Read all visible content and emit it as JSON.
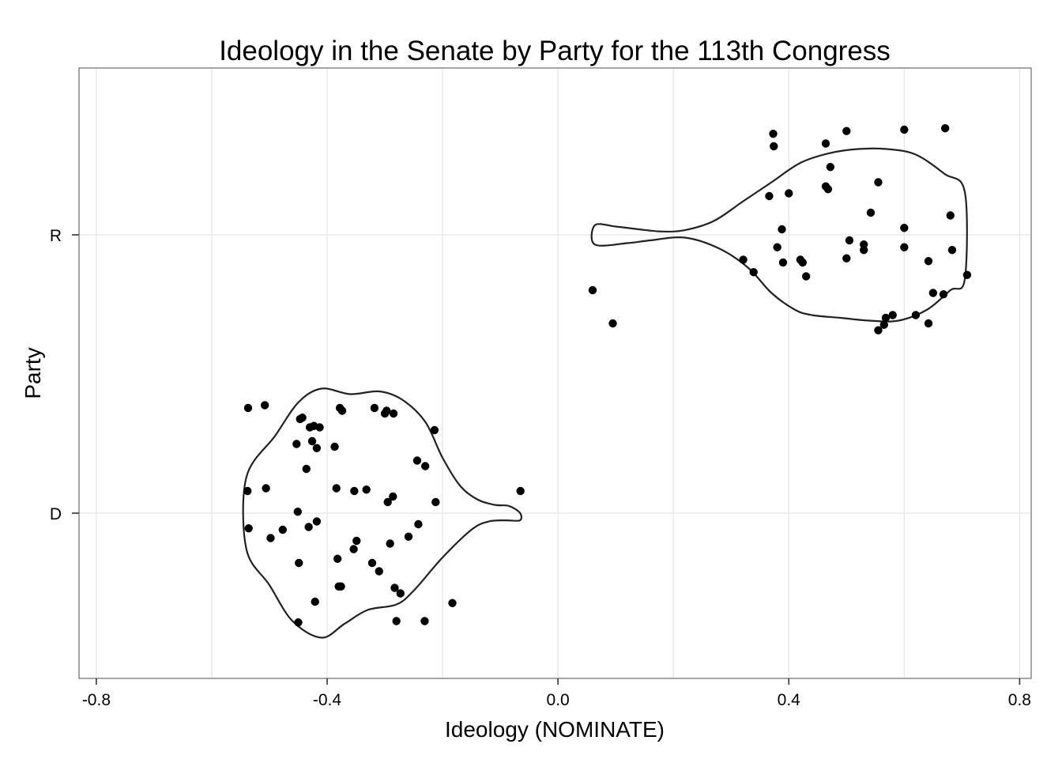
{
  "chart_data": {
    "type": "violin",
    "title": "Ideology in the Senate by Party for the 113th Congress",
    "xlabel": "Ideology (NOMINATE)",
    "ylabel": "Party",
    "xlim": [
      -0.83,
      0.82
    ],
    "categories": [
      "D",
      "R"
    ],
    "x_ticks": [
      -0.8,
      -0.4,
      0.0,
      0.4,
      0.8
    ],
    "x_tick_labels": [
      "-0.8",
      "-0.4",
      "0.0",
      "0.4",
      "0.8"
    ],
    "grid": true,
    "series": [
      {
        "category": "D",
        "violin_profile": [
          [
            -0.066,
            0.001
          ],
          [
            -0.085,
            0.026
          ],
          [
            -0.11,
            0.03
          ],
          [
            -0.14,
            0.05
          ],
          [
            -0.17,
            0.1
          ],
          [
            -0.2,
            0.2
          ],
          [
            -0.23,
            0.33
          ],
          [
            -0.27,
            0.41
          ],
          [
            -0.31,
            0.44
          ],
          [
            -0.36,
            0.43
          ],
          [
            -0.41,
            0.45
          ],
          [
            -0.45,
            0.4
          ],
          [
            -0.49,
            0.28
          ],
          [
            -0.54,
            0.13
          ],
          [
            -0.54,
            -0.13
          ],
          [
            -0.5,
            -0.26
          ],
          [
            -0.46,
            -0.39
          ],
          [
            -0.41,
            -0.45
          ],
          [
            -0.37,
            -0.4
          ],
          [
            -0.33,
            -0.35
          ],
          [
            -0.28,
            -0.33
          ],
          [
            -0.25,
            -0.28
          ],
          [
            -0.2,
            -0.16
          ],
          [
            -0.15,
            -0.06
          ],
          [
            -0.12,
            -0.03
          ],
          [
            -0.09,
            -0.026
          ],
          [
            -0.066,
            -0.026
          ]
        ],
        "points": [
          [
            -0.537,
            0.38
          ],
          [
            -0.508,
            0.39
          ],
          [
            -0.447,
            0.34
          ],
          [
            -0.443,
            0.345
          ],
          [
            -0.43,
            0.31
          ],
          [
            -0.423,
            0.315
          ],
          [
            -0.413,
            0.31
          ],
          [
            -0.378,
            0.38
          ],
          [
            -0.374,
            0.37
          ],
          [
            -0.318,
            0.38
          ],
          [
            -0.3,
            0.36
          ],
          [
            -0.297,
            0.37
          ],
          [
            -0.285,
            0.36
          ],
          [
            -0.214,
            0.3
          ],
          [
            -0.453,
            0.25
          ],
          [
            -0.426,
            0.26
          ],
          [
            -0.418,
            0.235
          ],
          [
            -0.387,
            0.24
          ],
          [
            -0.244,
            0.19
          ],
          [
            -0.23,
            0.17
          ],
          [
            -0.436,
            0.16
          ],
          [
            -0.538,
            0.08
          ],
          [
            -0.506,
            0.09
          ],
          [
            -0.384,
            0.09
          ],
          [
            -0.353,
            0.08
          ],
          [
            -0.332,
            0.085
          ],
          [
            -0.286,
            0.06
          ],
          [
            -0.295,
            0.04
          ],
          [
            -0.212,
            0.04
          ],
          [
            -0.065,
            0.08
          ],
          [
            -0.451,
            0.005
          ],
          [
            -0.536,
            -0.055
          ],
          [
            -0.477,
            -0.06
          ],
          [
            -0.432,
            -0.05
          ],
          [
            -0.418,
            -0.03
          ],
          [
            -0.242,
            -0.04
          ],
          [
            -0.498,
            -0.09
          ],
          [
            -0.349,
            -0.1
          ],
          [
            -0.291,
            -0.11
          ],
          [
            -0.259,
            -0.085
          ],
          [
            -0.354,
            -0.13
          ],
          [
            -0.382,
            -0.165
          ],
          [
            -0.449,
            -0.18
          ],
          [
            -0.322,
            -0.18
          ],
          [
            -0.31,
            -0.21
          ],
          [
            -0.38,
            -0.265
          ],
          [
            -0.376,
            -0.265
          ],
          [
            -0.283,
            -0.27
          ],
          [
            -0.273,
            -0.29
          ],
          [
            -0.421,
            -0.32
          ],
          [
            -0.183,
            -0.325
          ],
          [
            -0.45,
            -0.395
          ],
          [
            -0.28,
            -0.39
          ],
          [
            -0.231,
            -0.39
          ]
        ]
      },
      {
        "category": "R",
        "violin_profile": [
          [
            0.064,
            0.035
          ],
          [
            0.1,
            0.03
          ],
          [
            0.14,
            0.02
          ],
          [
            0.18,
            0.012
          ],
          [
            0.22,
            0.017
          ],
          [
            0.27,
            0.05
          ],
          [
            0.32,
            0.12
          ],
          [
            0.37,
            0.19
          ],
          [
            0.42,
            0.26
          ],
          [
            0.47,
            0.295
          ],
          [
            0.52,
            0.31
          ],
          [
            0.57,
            0.31
          ],
          [
            0.62,
            0.29
          ],
          [
            0.67,
            0.22
          ],
          [
            0.705,
            0.155
          ],
          [
            0.705,
            -0.16
          ],
          [
            0.68,
            -0.2
          ],
          [
            0.64,
            -0.27
          ],
          [
            0.59,
            -0.31
          ],
          [
            0.54,
            -0.31
          ],
          [
            0.49,
            -0.3
          ],
          [
            0.44,
            -0.29
          ],
          [
            0.41,
            -0.27
          ],
          [
            0.37,
            -0.21
          ],
          [
            0.33,
            -0.12
          ],
          [
            0.28,
            -0.05
          ],
          [
            0.22,
            -0.01
          ],
          [
            0.16,
            -0.02
          ],
          [
            0.12,
            -0.03
          ],
          [
            0.064,
            -0.035
          ]
        ],
        "points": [
          [
            0.373,
            0.365
          ],
          [
            0.5,
            0.375
          ],
          [
            0.6,
            0.38
          ],
          [
            0.671,
            0.385
          ],
          [
            0.374,
            0.32
          ],
          [
            0.464,
            0.33
          ],
          [
            0.472,
            0.245
          ],
          [
            0.555,
            0.19
          ],
          [
            0.464,
            0.175
          ],
          [
            0.468,
            0.165
          ],
          [
            0.366,
            0.14
          ],
          [
            0.4,
            0.15
          ],
          [
            0.542,
            0.08
          ],
          [
            0.68,
            0.07
          ],
          [
            0.388,
            0.02
          ],
          [
            0.6,
            0.025
          ],
          [
            0.505,
            -0.02
          ],
          [
            0.53,
            -0.035
          ],
          [
            0.38,
            -0.045
          ],
          [
            0.6,
            -0.045
          ],
          [
            0.53,
            -0.055
          ],
          [
            0.683,
            -0.055
          ],
          [
            0.5,
            -0.085
          ],
          [
            0.321,
            -0.09
          ],
          [
            0.42,
            -0.09
          ],
          [
            0.39,
            -0.1
          ],
          [
            0.424,
            -0.1
          ],
          [
            0.642,
            -0.095
          ],
          [
            0.339,
            -0.135
          ],
          [
            0.43,
            -0.15
          ],
          [
            0.709,
            -0.145
          ],
          [
            0.06,
            -0.2
          ],
          [
            0.65,
            -0.21
          ],
          [
            0.668,
            -0.215
          ],
          [
            0.095,
            -0.32
          ],
          [
            0.58,
            -0.29
          ],
          [
            0.568,
            -0.3
          ],
          [
            0.62,
            -0.29
          ],
          [
            0.642,
            -0.32
          ],
          [
            0.565,
            -0.325
          ],
          [
            0.555,
            -0.345
          ]
        ]
      }
    ]
  }
}
